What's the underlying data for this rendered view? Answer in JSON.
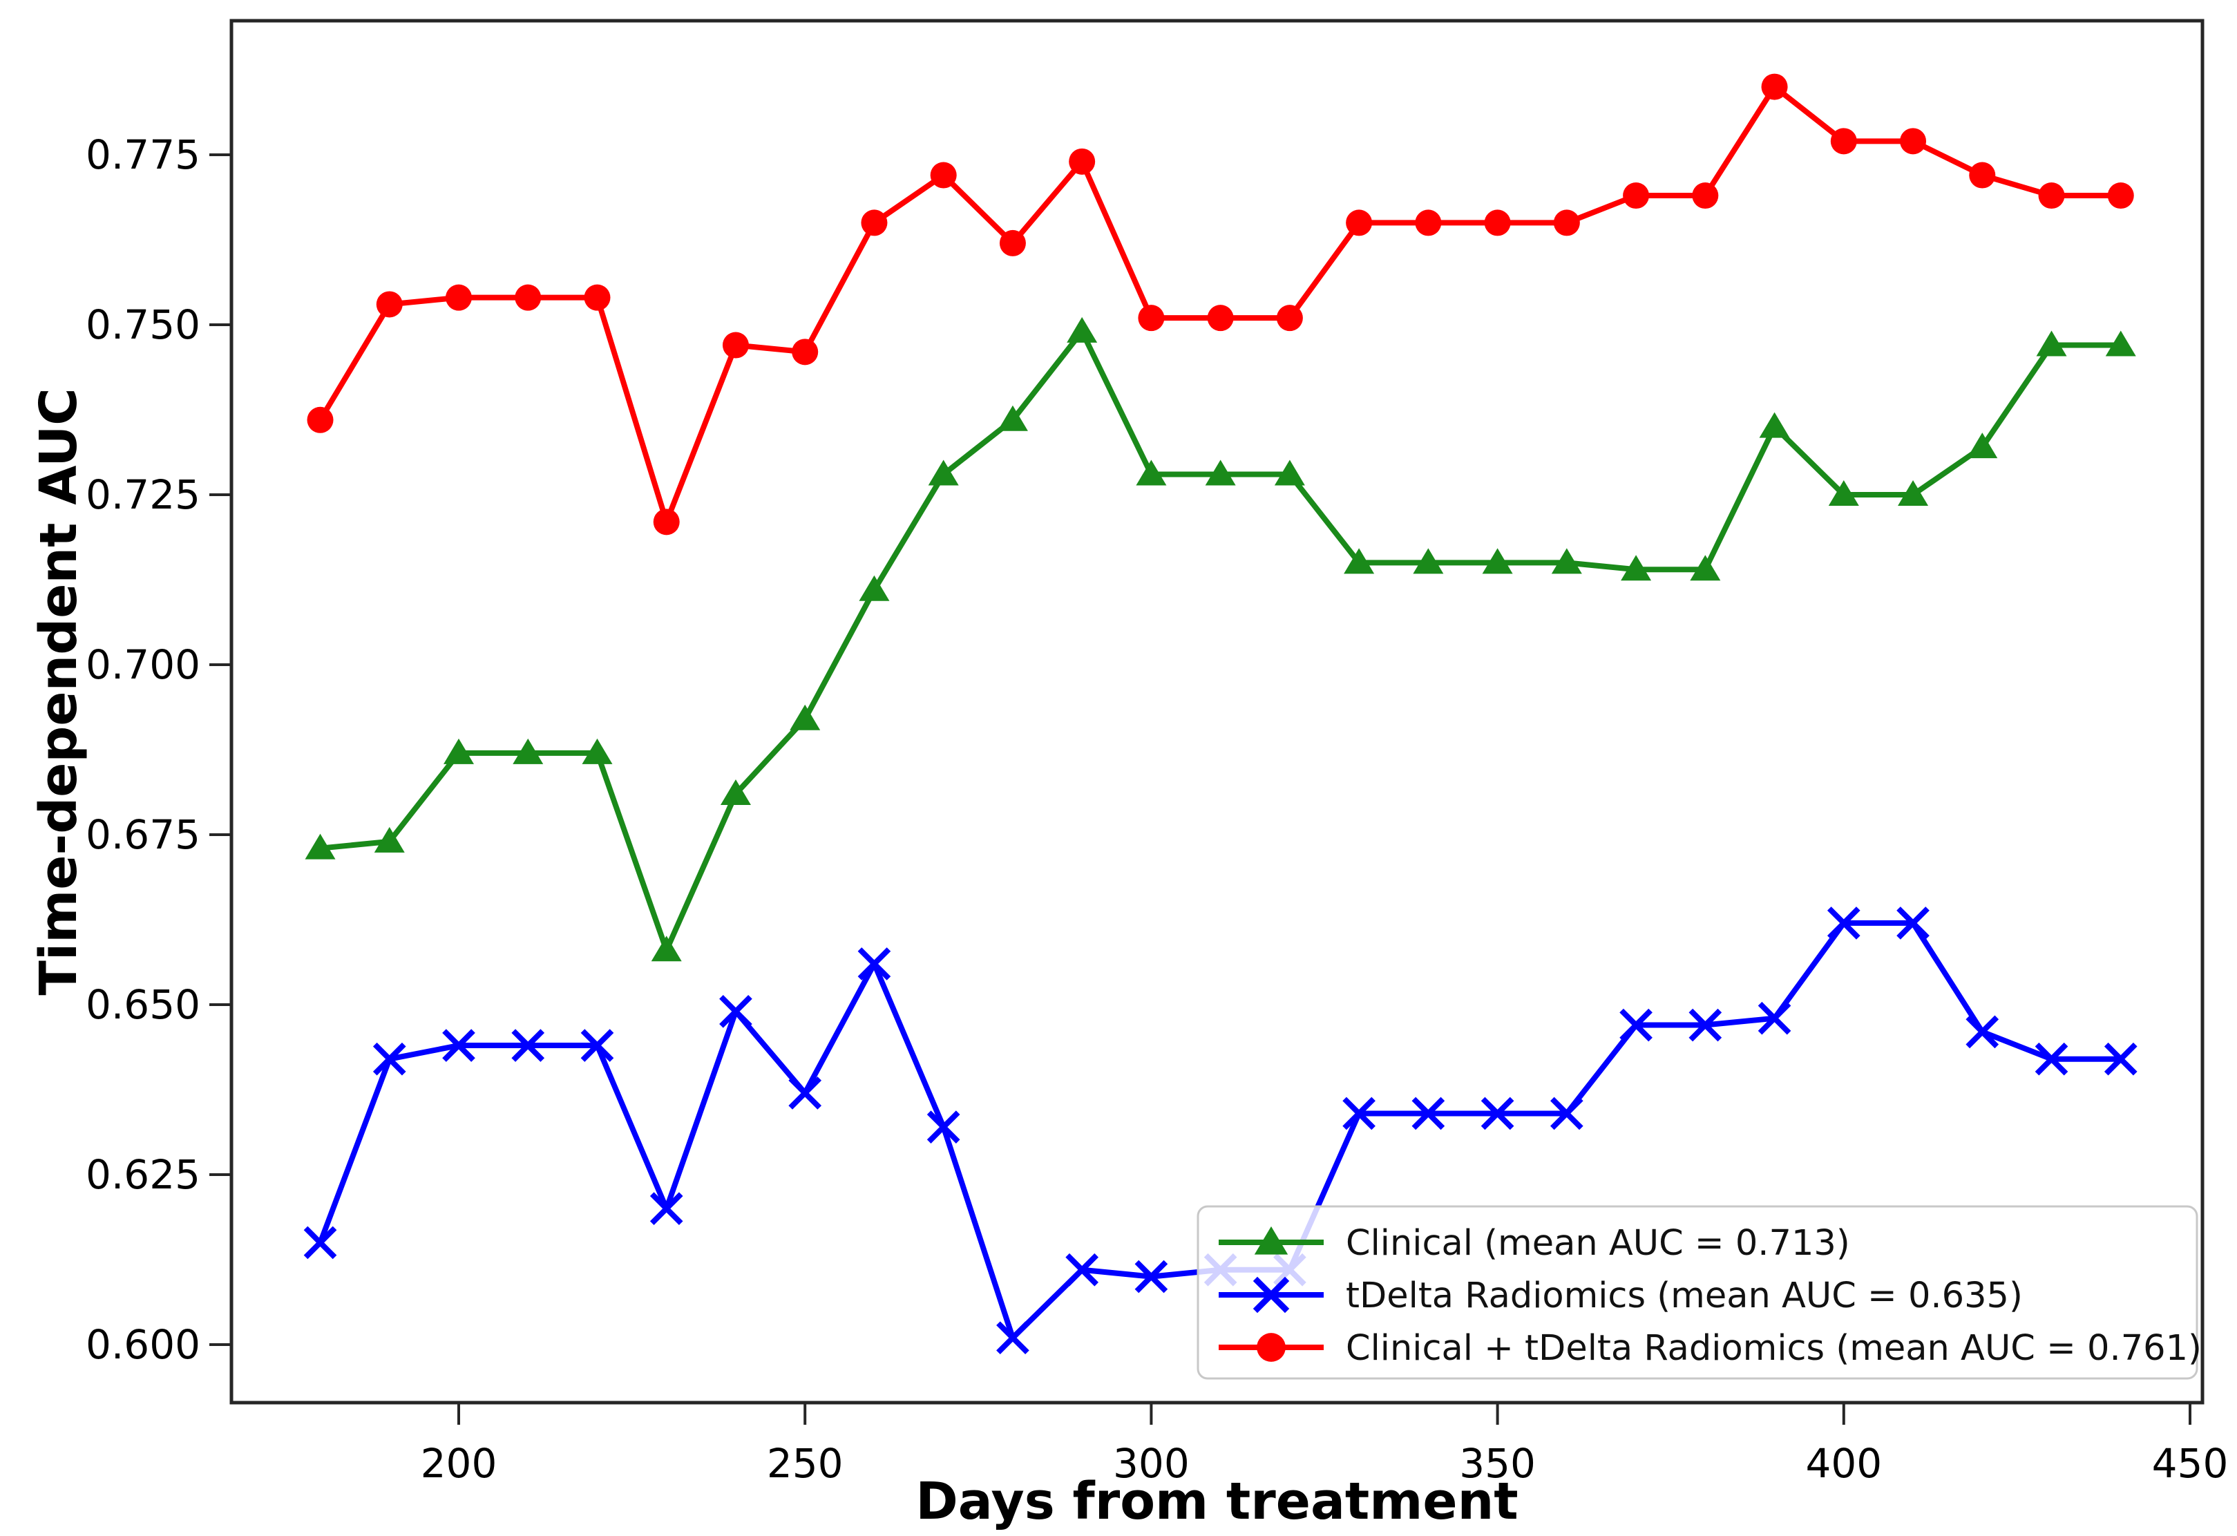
{
  "figure": {
    "background": "#ffffff",
    "spine_color": "#262626",
    "text_color": "#000000"
  },
  "axes": {
    "xlabel": "Days from treatment",
    "ylabel": "Time-dependent AUC",
    "x_tick_labels": [
      "200",
      "250",
      "300",
      "350",
      "400",
      "450"
    ],
    "y_tick_labels": [
      "0.600",
      "0.625",
      "0.650",
      "0.675",
      "0.700",
      "0.725",
      "0.750",
      "0.775"
    ]
  },
  "chart_data": {
    "type": "line",
    "title": "",
    "xlabel": "Days from treatment",
    "ylabel": "Time-dependent AUC",
    "xlim": [
      167,
      452
    ],
    "ylim": [
      0.592,
      0.794
    ],
    "x_ticks": [
      200,
      250,
      300,
      350,
      400,
      450
    ],
    "y_ticks": [
      0.6,
      0.625,
      0.65,
      0.675,
      0.7,
      0.725,
      0.75,
      0.775
    ],
    "grid": false,
    "legend_position": "lower right",
    "x": [
      180,
      190,
      200,
      210,
      220,
      230,
      240,
      250,
      260,
      270,
      280,
      290,
      300,
      310,
      320,
      330,
      340,
      350,
      360,
      370,
      380,
      390,
      400,
      410,
      420,
      430,
      440
    ],
    "series": [
      {
        "id": "clinical",
        "name": "Clinical (mean AUC = 0.713)",
        "mean_auc": 0.713,
        "color": "#1a8a1a",
        "marker": "triangle",
        "values": [
          0.673,
          0.674,
          0.687,
          0.687,
          0.687,
          0.658,
          0.681,
          0.692,
          0.711,
          0.728,
          0.736,
          0.749,
          0.728,
          0.728,
          0.728,
          0.715,
          0.715,
          0.715,
          0.715,
          0.714,
          0.714,
          0.735,
          0.725,
          0.725,
          0.732,
          0.747,
          0.747
        ]
      },
      {
        "id": "tdelta-radiomics",
        "name": "tDelta Radiomics (mean AUC = 0.635)",
        "mean_auc": 0.635,
        "color": "#0000ff",
        "marker": "x",
        "values": [
          0.615,
          0.642,
          0.644,
          0.644,
          0.644,
          0.62,
          0.649,
          0.637,
          0.656,
          0.632,
          0.601,
          0.611,
          0.61,
          0.611,
          0.611,
          0.634,
          0.634,
          0.634,
          0.634,
          0.647,
          0.647,
          0.648,
          0.662,
          0.662,
          0.646,
          0.642,
          0.642
        ]
      },
      {
        "id": "clinical-tdelta-radiomics",
        "name": "Clinical + tDelta Radiomics (mean AUC = 0.761)",
        "mean_auc": 0.761,
        "color": "#ff0000",
        "marker": "circle",
        "values": [
          0.736,
          0.753,
          0.754,
          0.754,
          0.754,
          0.721,
          0.747,
          0.746,
          0.765,
          0.772,
          0.762,
          0.774,
          0.751,
          0.751,
          0.751,
          0.765,
          0.765,
          0.765,
          0.765,
          0.769,
          0.769,
          0.785,
          0.777,
          0.777,
          0.772,
          0.769,
          0.769
        ]
      }
    ]
  }
}
